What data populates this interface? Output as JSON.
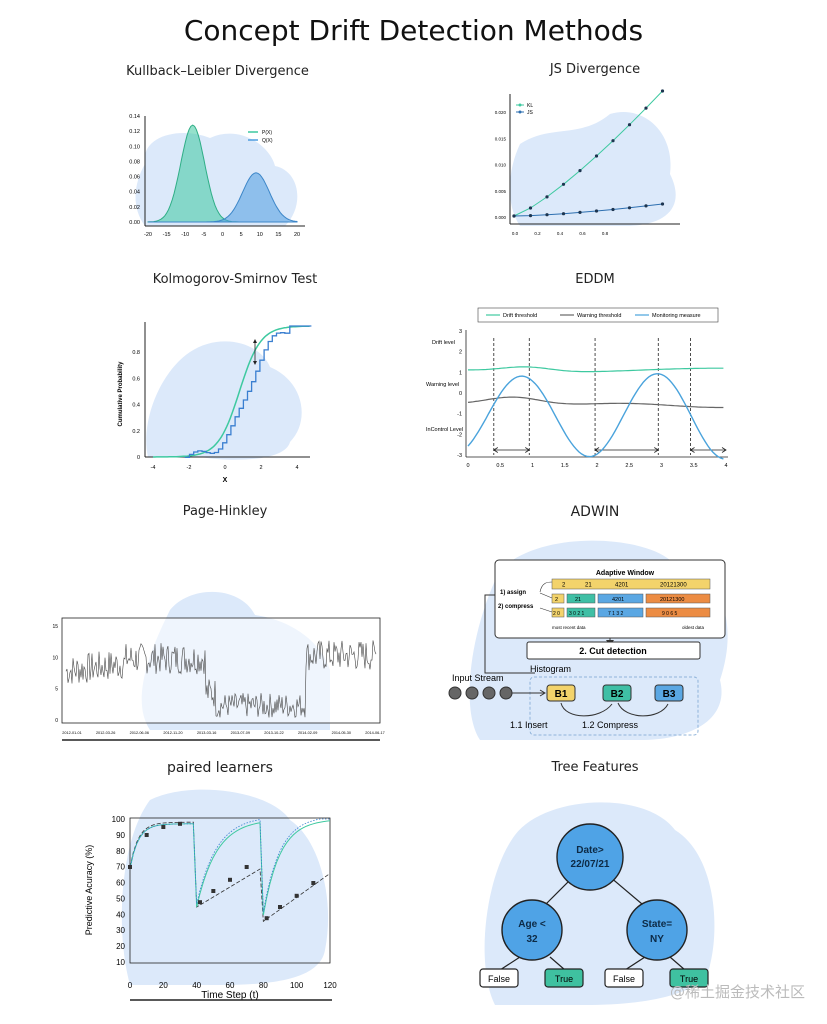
{
  "page": {
    "title": "Concept Drift Detection Methods",
    "watermark": "@稀土掘金技术社区"
  },
  "panels": {
    "kl": {
      "title": "Kullback–Leibler Divergence",
      "yticks": [
        "0.00",
        "0.02",
        "0.04",
        "0.06",
        "0.08",
        "0.10",
        "0.12",
        "0.14"
      ],
      "xticks": [
        "-20",
        "-15",
        "-10",
        "-5",
        "0",
        "5",
        "10",
        "15",
        "20"
      ],
      "legend": [
        "P(X)",
        "Q(X)"
      ],
      "colors": {
        "p": "#3ec9a0",
        "q": "#4f9de0"
      }
    },
    "js": {
      "title": "JS Divergence",
      "yticks": [
        "0.000",
        "0.005",
        "0.010",
        "0.015",
        "0.020"
      ],
      "xticks": [
        "0.0",
        "0.2",
        "0.4",
        "0.6",
        "0.8"
      ],
      "legend": [
        "KL",
        "JS"
      ]
    },
    "ks": {
      "title": "Kolmogorov-Smirnov Test",
      "ylabel": "Cumulative Probability",
      "xlabel": "X",
      "yticks": [
        "0",
        "0.2",
        "0.4",
        "0.6",
        "0.8"
      ],
      "xticks": [
        "-4",
        "-2",
        "0",
        "2",
        "4"
      ]
    },
    "eddm": {
      "title": "EDDM",
      "legend": [
        "Drift threshold",
        "Warning threshold",
        "Monitoring measure"
      ],
      "side_labels": [
        "Drift level",
        "Warning level",
        "InControl Level"
      ],
      "yticks": [
        "3",
        "2",
        "1",
        "0",
        "-1",
        "-2",
        "-3"
      ],
      "xticks": [
        "0",
        "0.5",
        "1",
        "1.5",
        "2",
        "2.5",
        "3",
        "3.5",
        "4"
      ]
    },
    "ph": {
      "title": "Page-Hinkley",
      "yticks": [
        "15",
        "10",
        "5",
        "0"
      ],
      "xticks": [
        "2012-01-01",
        "2012-03-26",
        "2012-06-06",
        "2012-11-20",
        "2013-03-16",
        "2013-07-09",
        "2013-10-22",
        "2014-02-09",
        "2014-05-30",
        "2014-06-17"
      ]
    },
    "adwin": {
      "title": "ADWIN",
      "window_title": "Adaptive Window",
      "row1": [
        "2",
        "21",
        "4201",
        "20121300"
      ],
      "row2": [
        "2",
        "21",
        "4201",
        "20121300"
      ],
      "row3": [
        "2 0",
        "3 0 2 1",
        "7 1 3 2",
        "9 0 6 5"
      ],
      "step1": "1) assign",
      "step2": "2) compress",
      "most_recent": "most recent data",
      "oldest": "oldest data",
      "cut": "2. Cut detection",
      "histogram": "Histogram",
      "input_stream": "Input Stream",
      "buckets": [
        "B1",
        "B2",
        "B3"
      ],
      "insert": "1.1 Insert",
      "compress": "1.2 Compress"
    },
    "paired": {
      "title": "paired learners",
      "ylabel": "Predictive Acuracy (%)",
      "xlabel": "Time Step (t)",
      "yticks": [
        "10",
        "20",
        "30",
        "40",
        "50",
        "60",
        "70",
        "80",
        "90",
        "100"
      ],
      "xticks": [
        "0",
        "20",
        "40",
        "60",
        "80",
        "100",
        "120"
      ]
    },
    "tree": {
      "title": "Tree Features",
      "root": [
        "Date>",
        "22/07/21"
      ],
      "left": [
        "Age <",
        "32"
      ],
      "right": [
        "State=",
        "NY"
      ],
      "leaves": [
        "False",
        "True",
        "False",
        "True"
      ]
    }
  }
}
